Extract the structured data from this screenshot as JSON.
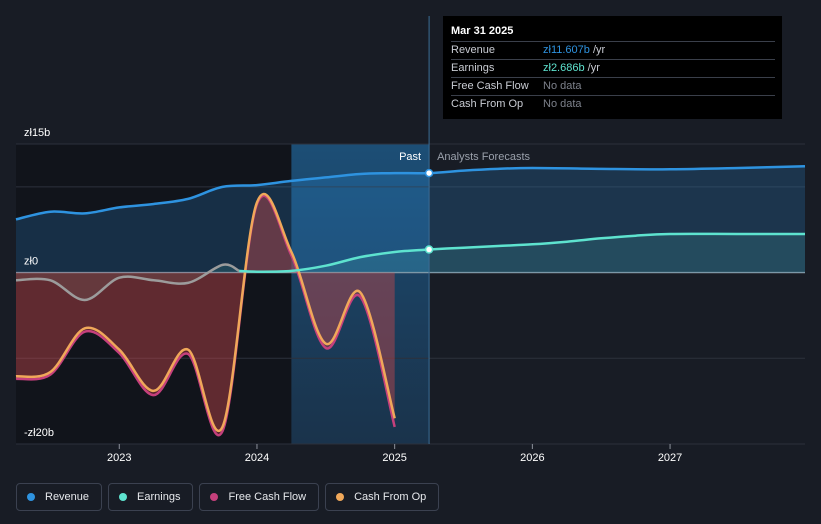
{
  "colors": {
    "revenue": "#2e93e0",
    "earnings": "#5ee3cf",
    "free_cash_flow": "#c5407c",
    "cash_from_op": "#f0a85a"
  },
  "tooltip": {
    "date": "Mar 31 2025",
    "rows": [
      {
        "label": "Revenue",
        "value": "zł11.607b",
        "unit": "/yr",
        "color": "#2e93e0"
      },
      {
        "label": "Earnings",
        "value": "zł2.686b",
        "unit": "/yr",
        "color": "#5ee3cf"
      },
      {
        "label": "Free Cash Flow",
        "value": "No data",
        "unit": "",
        "color": "#7d818b"
      },
      {
        "label": "Cash From Op",
        "value": "No data",
        "unit": "",
        "color": "#7d818b"
      }
    ]
  },
  "region_labels": {
    "past": "Past",
    "forecast": "Analysts Forecasts"
  },
  "legend": [
    {
      "label": "Revenue",
      "color": "#2e93e0"
    },
    {
      "label": "Earnings",
      "color": "#5ee3cf"
    },
    {
      "label": "Free Cash Flow",
      "color": "#c5407c"
    },
    {
      "label": "Cash From Op",
      "color": "#f0a85a"
    }
  ],
  "chart_data": {
    "type": "line",
    "y_unit": "zł b",
    "ylim": [
      -20,
      15
    ],
    "xlim": [
      2022.25,
      2027.98
    ],
    "y_ticks": [
      {
        "value": 15,
        "label": "zł15b"
      },
      {
        "value": 0,
        "label": "zł0"
      },
      {
        "value": -20,
        "label": "-zł20b"
      }
    ],
    "x_ticks": [
      {
        "value": 2023,
        "label": "2023"
      },
      {
        "value": 2024,
        "label": "2024"
      },
      {
        "value": 2025,
        "label": "2025"
      },
      {
        "value": 2026,
        "label": "2026"
      },
      {
        "value": 2027,
        "label": "2027"
      }
    ],
    "past_boundary": 2025.25,
    "highlight_start": 2024.25,
    "series": [
      {
        "name": "Revenue",
        "key": "revenue",
        "x": [
          2022.25,
          2022.5,
          2022.75,
          2023.0,
          2023.25,
          2023.5,
          2023.75,
          2024.0,
          2024.25,
          2024.5,
          2024.75,
          2025.0,
          2025.25,
          2025.5,
          2025.75,
          2026.0,
          2026.5,
          2027.0,
          2027.5,
          2027.98
        ],
        "values": [
          6.2,
          7.1,
          6.9,
          7.6,
          8.0,
          8.6,
          10.0,
          10.2,
          10.7,
          11.1,
          11.5,
          11.6,
          11.607,
          11.9,
          12.1,
          12.2,
          12.1,
          12.05,
          12.2,
          12.4
        ]
      },
      {
        "name": "Earnings",
        "key": "earnings",
        "x": [
          2022.25,
          2022.5,
          2022.75,
          2023.0,
          2023.25,
          2023.5,
          2023.75,
          2023.87,
          2024.0,
          2024.25,
          2024.5,
          2024.75,
          2025.0,
          2025.25,
          2025.5,
          2025.75,
          2026.0,
          2026.25,
          2026.5,
          2026.75,
          2027.0,
          2027.5,
          2027.98
        ],
        "values": [
          -0.9,
          -0.9,
          -3.2,
          -0.6,
          -0.9,
          -1.2,
          0.9,
          0.2,
          0.1,
          0.2,
          0.8,
          1.8,
          2.4,
          2.686,
          2.9,
          3.1,
          3.3,
          3.6,
          4.0,
          4.3,
          4.5,
          4.5,
          4.5
        ]
      },
      {
        "name": "Free Cash Flow",
        "key": "free_cash_flow",
        "x": [
          2022.25,
          2022.5,
          2022.75,
          2023.0,
          2023.25,
          2023.5,
          2023.75,
          2024.0,
          2024.25,
          2024.5,
          2024.75,
          2025.0
        ],
        "values": [
          -12.4,
          -11.9,
          -6.9,
          -9.4,
          -14.3,
          -9.5,
          -18.5,
          8.0,
          2.0,
          -8.8,
          -2.8,
          -18.0
        ]
      },
      {
        "name": "Cash From Op",
        "key": "cash_from_op",
        "x": [
          2022.25,
          2022.5,
          2022.75,
          2023.0,
          2023.25,
          2023.5,
          2023.75,
          2024.0,
          2024.25,
          2024.5,
          2024.75,
          2025.0
        ],
        "values": [
          -12.1,
          -11.6,
          -6.5,
          -9.0,
          -13.8,
          -9.0,
          -18.0,
          8.2,
          2.4,
          -8.3,
          -2.3,
          -17.0
        ]
      }
    ]
  }
}
